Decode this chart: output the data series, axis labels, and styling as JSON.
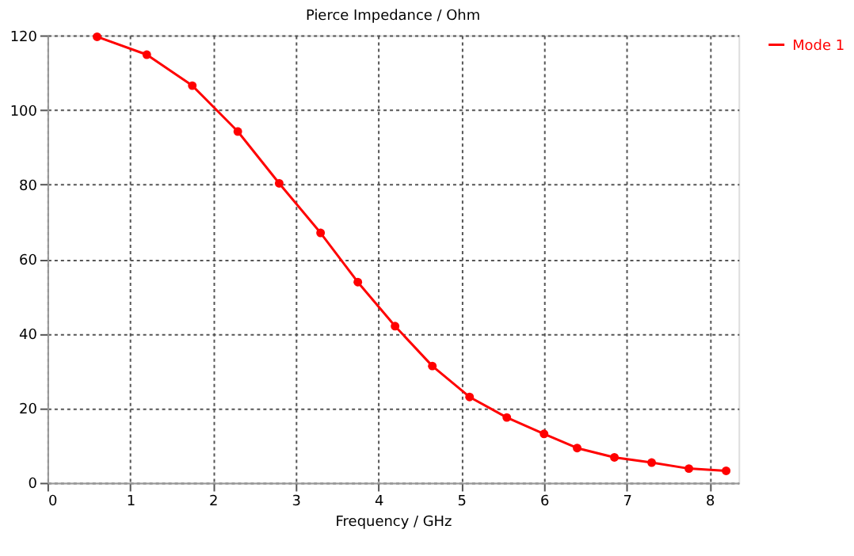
{
  "chart_data": {
    "type": "line",
    "title": "Pierce Impedance / Ohm",
    "xlabel": "Frequency / GHz",
    "x": [
      0.6,
      1.2,
      1.75,
      2.3,
      2.8,
      3.3,
      3.75,
      4.2,
      4.65,
      5.1,
      5.55,
      6.0,
      6.4,
      6.85,
      7.3,
      7.75,
      8.2
    ],
    "series": [
      {
        "name": "Mode 1",
        "color": "#ff0000",
        "values": [
          119.6,
          114.8,
          106.5,
          94.2,
          80.3,
          67,
          53.8,
          42,
          31.3,
          23,
          17.5,
          13.1,
          9.3,
          6.8,
          5.4,
          3.8,
          3.2
        ]
      }
    ],
    "xlim": [
      0,
      8.35
    ],
    "xticks": [
      0,
      1,
      2,
      3,
      4,
      5,
      6,
      7,
      8
    ],
    "ylim": [
      0,
      120
    ],
    "yticks": [
      0,
      20,
      40,
      60,
      80,
      100,
      120
    ],
    "grid": true,
    "legend": "top right",
    "marker": "circle",
    "line_style": "solid"
  }
}
